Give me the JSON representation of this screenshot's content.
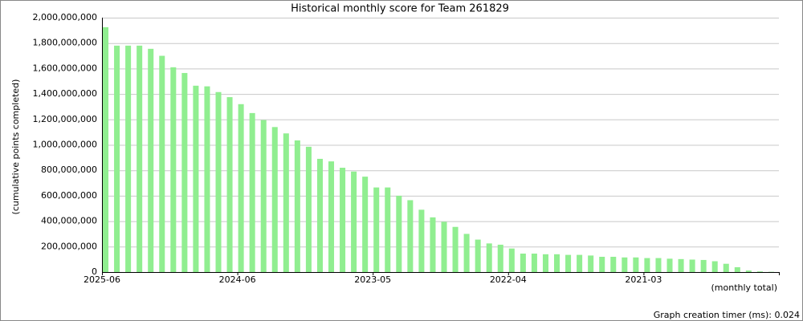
{
  "chart_data": {
    "type": "bar",
    "title": "Historical monthly score for Team 261829",
    "y_label": "(cumulative points completed)",
    "x_label": "(monthly total)",
    "footer": "Graph creation timer (ms): 0.024",
    "color": "#90ee90",
    "grid": true,
    "categories": [
      "2025-06",
      null,
      null,
      null,
      null,
      null,
      null,
      null,
      null,
      null,
      null,
      null,
      "2024-06",
      null,
      null,
      null,
      null,
      null,
      null,
      null,
      null,
      null,
      null,
      null,
      "2023-05",
      null,
      null,
      null,
      null,
      null,
      null,
      null,
      null,
      null,
      null,
      null,
      "2022-04",
      null,
      null,
      null,
      null,
      null,
      null,
      null,
      null,
      null,
      null,
      null,
      "2021-03",
      null,
      null,
      null,
      null,
      null,
      null,
      null,
      null,
      null,
      null,
      null
    ],
    "values": [
      1925000000,
      1780000000,
      1780000000,
      1780000000,
      1755000000,
      1700000000,
      1610000000,
      1565000000,
      1465000000,
      1460000000,
      1415000000,
      1375000000,
      1320000000,
      1250000000,
      1195000000,
      1140000000,
      1090000000,
      1035000000,
      985000000,
      890000000,
      870000000,
      820000000,
      790000000,
      750000000,
      665000000,
      665000000,
      600000000,
      565000000,
      490000000,
      430000000,
      395000000,
      355000000,
      300000000,
      255000000,
      225000000,
      215000000,
      185000000,
      145000000,
      145000000,
      140000000,
      140000000,
      135000000,
      135000000,
      130000000,
      120000000,
      120000000,
      115000000,
      115000000,
      110000000,
      110000000,
      105000000,
      102000000,
      98000000,
      95000000,
      85000000,
      65000000,
      38000000,
      12000000,
      5000000,
      2000000
    ],
    "ylim": [
      0,
      2000000000
    ],
    "yticks": [
      0,
      {
        "value": 200000000,
        "label": "200,000,000"
      },
      {
        "value": 400000000,
        "label": "400,000,000"
      },
      {
        "value": 600000000,
        "label": "600,000,000"
      },
      {
        "value": 800000000,
        "label": "800,000,000"
      },
      {
        "value": 1000000000,
        "label": "1,000,000,000"
      },
      {
        "value": 1200000000,
        "label": "1,200,000,000"
      },
      {
        "value": 1400000000,
        "label": "1,400,000,000"
      },
      {
        "value": 1600000000,
        "label": "1,600,000,000"
      },
      {
        "value": 1800000000,
        "label": "1,800,000,000"
      },
      {
        "value": 2000000000,
        "label": "2,000,000,000"
      }
    ]
  }
}
